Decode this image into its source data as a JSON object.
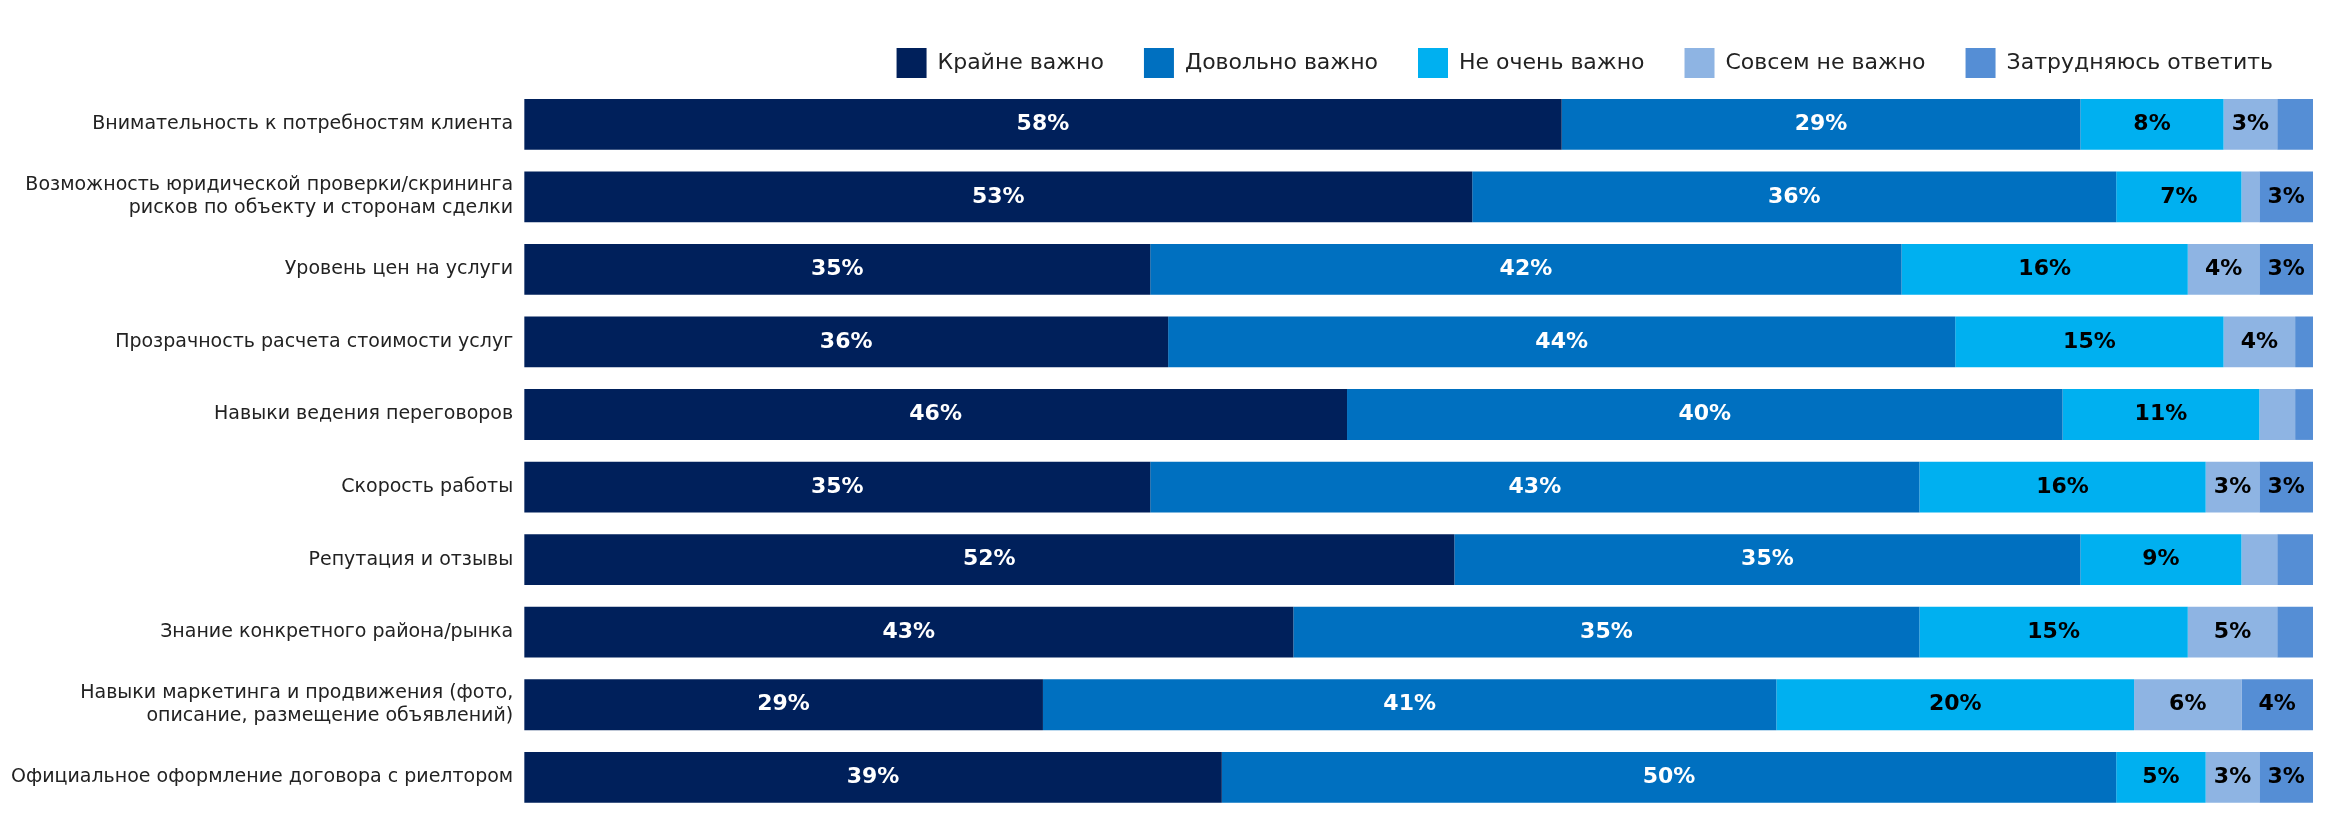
{
  "chart_data": {
    "type": "bar",
    "orientation": "horizontal",
    "stacked": true,
    "xlim": [
      0,
      100
    ],
    "tick_labels": "y",
    "legend": "top",
    "categories": [
      "Внимательность к потребностям клиента",
      "Возможность юридической проверки/скрининга рисков по объекту и сторонам сделки",
      "Уровень цен на услуги",
      "Прозрачность расчета стоимости услуг",
      "Навыки ведения переговоров",
      "Скорость работы",
      "Репутация и отзывы",
      "Знание конкретного района/рынка",
      "Навыки маркетинга и продвижения (фото, описание, размещение объявлений)",
      "Официальное оформление договора с риелтором"
    ],
    "series": [
      {
        "name": "Крайне важно",
        "color": "#00205b",
        "values": [
          58,
          53,
          35,
          36,
          46,
          35,
          52,
          43,
          29,
          39
        ],
        "value_labels": [
          "58%",
          "53%",
          "35%",
          "36%",
          "46%",
          "35%",
          "52%",
          "43%",
          "29%",
          "39%"
        ]
      },
      {
        "name": "Довольно важно",
        "color": "#0070c0",
        "values": [
          29,
          36,
          42,
          44,
          40,
          43,
          35,
          35,
          41,
          50
        ],
        "value_labels": [
          "29%",
          "36%",
          "42%",
          "44%",
          "40%",
          "43%",
          "35%",
          "35%",
          "41%",
          "50%"
        ]
      },
      {
        "name": "Не очень важно",
        "color": "#00b0f0",
        "values": [
          8,
          7,
          16,
          15,
          11,
          16,
          9,
          15,
          20,
          5
        ],
        "value_labels": [
          "8%",
          "7%",
          "16%",
          "15%",
          "11%",
          "16%",
          "9%",
          "15%",
          "20%",
          "5%"
        ]
      },
      {
        "name": "Совсем не важно",
        "color": "#8eb4e3",
        "values": [
          3,
          1,
          4,
          4,
          2,
          3,
          2,
          5,
          6,
          3
        ],
        "value_labels": [
          "3%",
          null,
          "4%",
          "4%",
          null,
          "3%",
          null,
          "5%",
          "6%",
          "3%"
        ]
      },
      {
        "name": "Затрудняюсь ответить",
        "color": "#558ed5",
        "values": [
          2,
          3,
          3,
          1,
          1,
          3,
          2,
          2,
          4,
          3
        ],
        "value_labels": [
          null,
          "3%",
          "3%",
          null,
          null,
          "3%",
          null,
          null,
          "4%",
          "3%"
        ]
      }
    ]
  }
}
